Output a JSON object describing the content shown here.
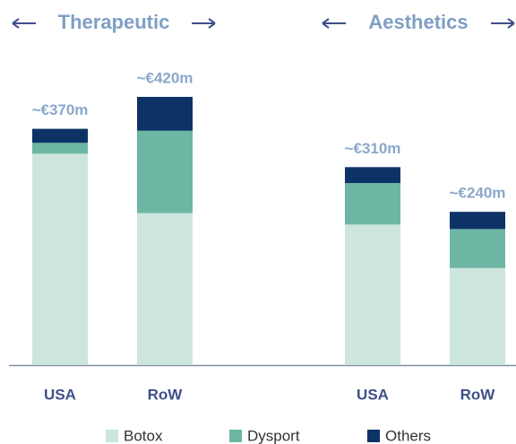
{
  "chart_data": {
    "type": "stacked_bar",
    "groups": [
      "Therapeutic",
      "Aesthetics"
    ],
    "categories": [
      "USA",
      "RoW",
      "USA",
      "RoW"
    ],
    "series": [
      {
        "name": "Botox",
        "color": "#cce5dd",
        "values": [
          331,
          238,
          220,
          152
        ]
      },
      {
        "name": "Dysport",
        "color": "#6db6a4",
        "values": [
          17,
          129,
          65,
          61
        ]
      },
      {
        "name": "Others",
        "color": "#0d3366",
        "values": [
          22,
          53,
          25,
          27
        ]
      }
    ],
    "total_labels": [
      "~€370m",
      "~€420m",
      "~€310m",
      "~€240m"
    ],
    "ylim": [
      0,
      420
    ]
  }
}
